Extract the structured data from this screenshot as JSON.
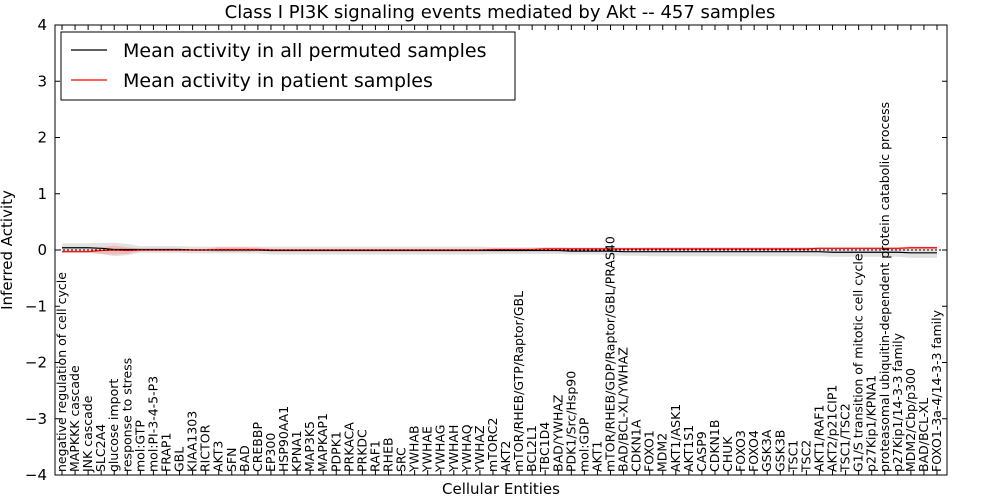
{
  "chart_data": {
    "type": "line",
    "title": "Class I PI3K signaling events mediated by Akt -- 457 samples",
    "xlabel": "Cellular Entities",
    "ylabel": "Inferred Activity",
    "ylim": [
      -4,
      4
    ],
    "yticks": [
      "4",
      "3",
      "2",
      "1",
      "0",
      "−1",
      "−2",
      "−3",
      "−4"
    ],
    "ytick_values": [
      4,
      3,
      2,
      1,
      0,
      -1,
      -2,
      -3,
      -4
    ],
    "legend": {
      "position": "top-left",
      "entries": [
        {
          "label": "Mean activity in all permuted samples",
          "color": "#000000"
        },
        {
          "label": "Mean activity in patient samples",
          "color": "#ff0000"
        }
      ]
    },
    "categories": [
      "negative regulation of cell cycle",
      "MAPKKK cascade",
      "JNK cascade",
      "SLC2A4",
      "glucose import",
      "response to stress",
      "mol:GTP",
      "mol:PI-3-4-5-P3",
      "FRAP1",
      "GBL",
      "KIAA1303",
      "RICTOR",
      "AKT3",
      "SFN",
      "BAD",
      "CREBBP",
      "EP300",
      "HSP90AA1",
      "KPNA1",
      "MAP3K5",
      "MAPKAP1",
      "PDPK1",
      "PRKACA",
      "PRKDC",
      "RAF1",
      "RHEB",
      "SRC",
      "YWHAB",
      "YWHAE",
      "YWHAG",
      "YWHAH",
      "YWHAQ",
      "YWHAZ",
      "mTORC2",
      "AKT2",
      "mTOR/RHEB/GTP/Raptor/GBL",
      "BCL2L1",
      "TBC1D4",
      "BAD/YWHAZ",
      "PDK1/Src/Hsp90",
      "mol:GDP",
      "AKT1",
      "mTOR/RHEB/GDP/Raptor/GBL/PRAS40",
      "BAD/BCL-XL/YWHAZ",
      "CDKN1A",
      "FOXO1",
      "MDM2",
      "AKT1/ASK1",
      "AKT1S1",
      "CASP9",
      "CDKN1B",
      "CHUK",
      "FOXO3",
      "FOXO4",
      "GSK3A",
      "GSK3B",
      "TSC1",
      "TSC2",
      "AKT1/RAF1",
      "AKT2/p21CIP1",
      "TSC1/TSC2",
      "G1/S transition of mitotic cell cycle",
      "p27Kip1/KPNA1",
      "proteasomal ubiquitin-dependent protein catabolic process",
      "p27Kip1/14-3-3 family",
      "MDM2/Cbp/p300",
      "BAD/BCL-XL",
      "FOXO1-3a-4/14-3-3 family"
    ],
    "series": [
      {
        "name": "Mean activity in all permuted samples",
        "color": "#000000",
        "values": [
          0.04,
          0.04,
          0.04,
          0.03,
          0.01,
          0.01,
          0.01,
          0.01,
          0.01,
          0.01,
          0.0,
          0.0,
          0.0,
          0.0,
          0.0,
          0.0,
          -0.01,
          -0.01,
          -0.01,
          -0.01,
          -0.01,
          -0.01,
          -0.01,
          -0.01,
          -0.01,
          -0.01,
          -0.01,
          -0.01,
          -0.01,
          -0.01,
          -0.01,
          -0.01,
          -0.01,
          -0.01,
          -0.01,
          -0.01,
          -0.01,
          -0.01,
          -0.01,
          -0.02,
          -0.02,
          -0.02,
          -0.02,
          -0.03,
          -0.03,
          -0.03,
          -0.03,
          -0.03,
          -0.03,
          -0.03,
          -0.03,
          -0.03,
          -0.03,
          -0.03,
          -0.03,
          -0.03,
          -0.03,
          -0.03,
          -0.03,
          -0.04,
          -0.04,
          -0.04,
          -0.04,
          -0.04,
          -0.04,
          -0.05,
          -0.05,
          -0.05
        ],
        "band": [
          0.08,
          0.08,
          0.08,
          0.1,
          0.12,
          0.1,
          0.06,
          0.06,
          0.06,
          0.06,
          0.06,
          0.06,
          0.06,
          0.06,
          0.06,
          0.06,
          0.07,
          0.07,
          0.07,
          0.07,
          0.07,
          0.07,
          0.07,
          0.07,
          0.07,
          0.07,
          0.07,
          0.07,
          0.07,
          0.07,
          0.07,
          0.07,
          0.07,
          0.06,
          0.06,
          0.06,
          0.06,
          0.06,
          0.06,
          0.06,
          0.06,
          0.06,
          0.07,
          0.07,
          0.07,
          0.08,
          0.08,
          0.08,
          0.08,
          0.08,
          0.08,
          0.08,
          0.08,
          0.08,
          0.08,
          0.08,
          0.08,
          0.08,
          0.08,
          0.08,
          0.08,
          0.08,
          0.08,
          0.08,
          0.08,
          0.09,
          0.09,
          0.09
        ]
      },
      {
        "name": "Mean activity in patient samples",
        "color": "#ff0000",
        "values": [
          -0.03,
          -0.03,
          -0.03,
          -0.01,
          0.0,
          -0.01,
          0.0,
          0.0,
          0.0,
          0.0,
          0.0,
          0.0,
          0.01,
          0.01,
          0.01,
          0.01,
          0.0,
          0.0,
          0.0,
          0.0,
          0.0,
          0.0,
          0.0,
          0.0,
          0.0,
          0.0,
          0.0,
          0.0,
          0.0,
          0.0,
          0.0,
          0.0,
          0.0,
          0.01,
          0.01,
          0.01,
          0.01,
          0.02,
          0.02,
          0.02,
          0.02,
          0.02,
          0.02,
          0.02,
          0.02,
          0.02,
          0.02,
          0.02,
          0.02,
          0.02,
          0.02,
          0.02,
          0.02,
          0.02,
          0.02,
          0.02,
          0.02,
          0.02,
          0.03,
          0.03,
          0.03,
          0.03,
          0.03,
          0.03,
          0.03,
          0.04,
          0.04,
          0.04
        ],
        "band": [
          0.02,
          0.02,
          0.02,
          0.06,
          0.08,
          0.06,
          0.02,
          0.02,
          0.02,
          0.02,
          0.02,
          0.02,
          0.04,
          0.04,
          0.04,
          0.03,
          0.02,
          0.02,
          0.02,
          0.02,
          0.02,
          0.02,
          0.02,
          0.02,
          0.02,
          0.02,
          0.02,
          0.02,
          0.02,
          0.02,
          0.02,
          0.02,
          0.02,
          0.02,
          0.02,
          0.02,
          0.02,
          0.02,
          0.02,
          0.02,
          0.02,
          0.02,
          0.02,
          0.02,
          0.02,
          0.02,
          0.02,
          0.02,
          0.02,
          0.02,
          0.02,
          0.02,
          0.02,
          0.02,
          0.02,
          0.02,
          0.02,
          0.02,
          0.02,
          0.02,
          0.02,
          0.02,
          0.02,
          0.02,
          0.02,
          0.02,
          0.02,
          0.02
        ]
      }
    ]
  }
}
